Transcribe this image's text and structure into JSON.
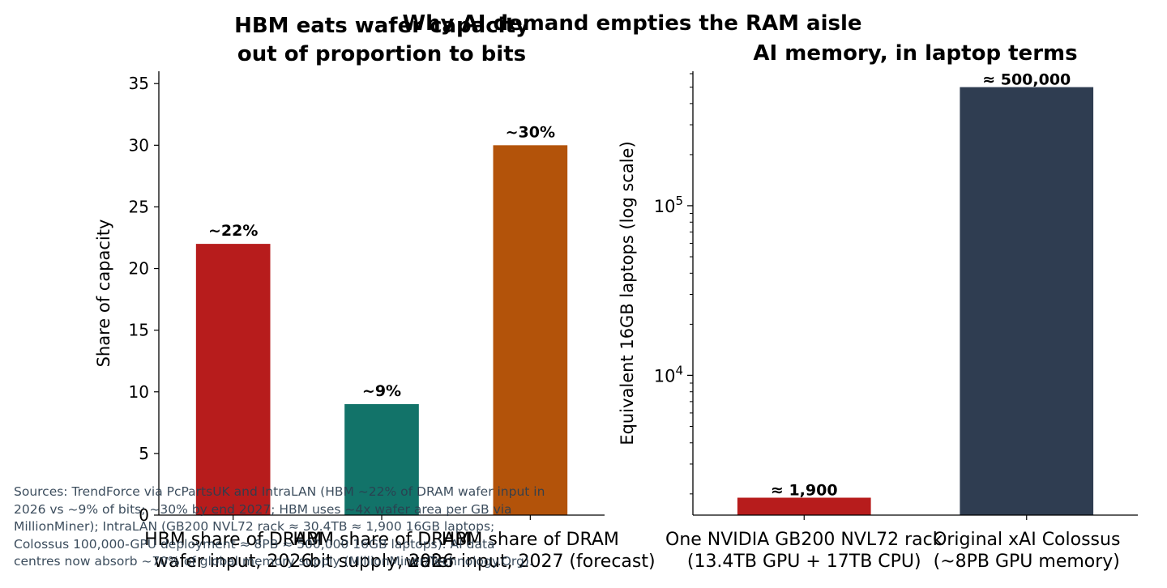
{
  "suptitle": "Why AI demand empties the RAM aisle",
  "chart_data": [
    {
      "type": "bar",
      "title_lines": [
        "HBM eats wafer capacity",
        "out of proportion to bits"
      ],
      "categories": [
        {
          "lines": [
            "HBM share of DRAM",
            "wafer input, 2026"
          ]
        },
        {
          "lines": [
            "HBM share of DRAM",
            "bit supply, 2026"
          ]
        },
        {
          "lines": [
            "HBM share of DRAM",
            "wafer input, 2027 (forecast)"
          ]
        }
      ],
      "values": [
        22,
        9,
        30
      ],
      "data_labels": [
        "~22%",
        "~9%",
        "~30%"
      ],
      "colors": [
        "#b71c1c",
        "#127369",
        "#b3530a"
      ],
      "xlabel": "",
      "ylabel": "Share of capacity",
      "ylim": [
        0,
        36
      ],
      "yticks": [
        0,
        5,
        10,
        15,
        20,
        25,
        30,
        35
      ],
      "grid": false
    },
    {
      "type": "bar",
      "title_lines": [
        "AI memory, in laptop terms"
      ],
      "categories": [
        {
          "lines": [
            "One NVIDIA GB200 NVL72 rack",
            "(13.4TB GPU + 17TB CPU)"
          ]
        },
        {
          "lines": [
            "Original xAI Colossus",
            "(~8PB GPU memory)"
          ]
        }
      ],
      "values": [
        1900,
        500000
      ],
      "data_labels": [
        "≈ 1,900",
        "≈ 500,000"
      ],
      "colors": [
        "#b71c1c",
        "#2f3d51"
      ],
      "xlabel": "",
      "ylabel": "Equivalent 16GB laptops (log scale)",
      "yscale": "log",
      "ylim": [
        1500,
        620000
      ],
      "major_ticks": [
        {
          "value": 10000,
          "base": "10",
          "exp": "4"
        },
        {
          "value": 100000,
          "base": "10",
          "exp": "5"
        }
      ],
      "grid": false
    }
  ],
  "footnote_lines": [
    "Sources: TrendForce via PcPartsUK and IntraLAN (HBM ~22% of DRAM wafer input in",
    "2026 vs ~9% of bits; ~30% by end 2027; HBM uses ~4x wafer area per GB via",
    "MillionMiner); IntraLAN (GB200 NVL72 rack ≈ 30.4TB ≈ 1,900 16GB laptops;",
    "Colossus 100,000-GPU deployment ≈ 8PB ≈ 500,000 16GB laptops). AI data",
    "centres now absorb ~70% of global memory supply (MillionMiner/Technology.Org)."
  ]
}
